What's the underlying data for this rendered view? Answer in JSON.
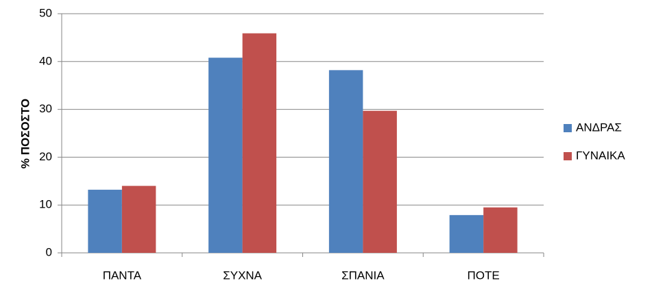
{
  "chart_data": {
    "type": "bar",
    "y_label": "% ΠΟΣΟΣΤΟ",
    "categories": [
      "ΠΑΝΤΑ",
      "ΣΥΧΝΑ",
      "ΣΠΑΝΙΑ",
      "ΠΟΤΕ"
    ],
    "series": [
      {
        "name": "ΑΝΔΡΑΣ",
        "color": "#4f81bd",
        "values": [
          13.2,
          40.8,
          38.2,
          7.9
        ]
      },
      {
        "name": "ΓΥΝΑΙΚΑ",
        "color": "#c0504d",
        "values": [
          14.0,
          45.9,
          29.7,
          9.5
        ]
      }
    ],
    "ylim": [
      0,
      50
    ],
    "yticks": [
      0,
      10,
      20,
      30,
      40,
      50
    ],
    "grid": true,
    "legend": "right"
  }
}
